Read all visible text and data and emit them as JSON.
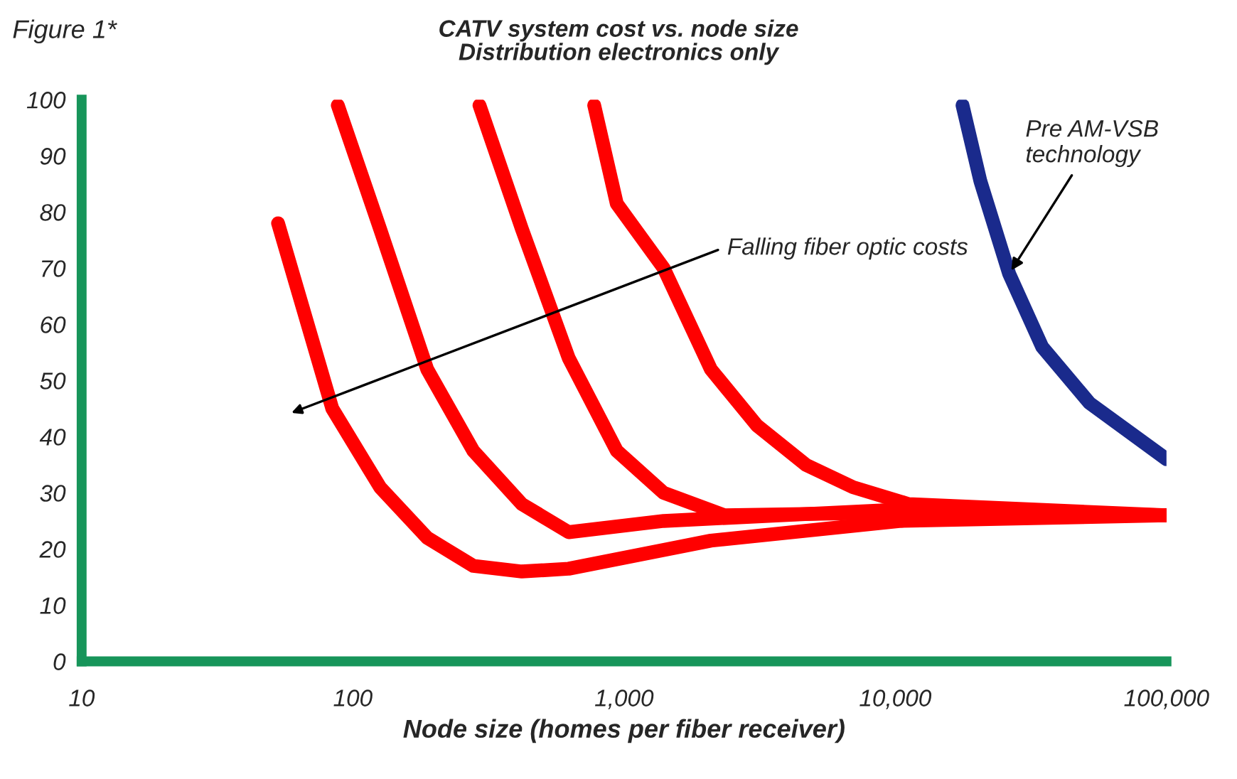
{
  "chart_data": {
    "type": "line",
    "title": "CATV system cost vs. node size",
    "subtitle": "Distribution electronics only",
    "xlabel": "Node size (homes per fiber receiver)",
    "log": "x",
    "xlim": [
      10,
      100000
    ],
    "xticks": [
      10,
      100,
      {
        "value": 1000,
        "label": "1,000"
      },
      {
        "value": 10000,
        "label": "10,000"
      },
      {
        "value": 100000,
        "label": "100,000"
      }
    ],
    "ylim": [
      0,
      100
    ],
    "yticks": [
      0,
      10,
      20,
      30,
      40,
      50,
      60,
      70,
      80,
      90,
      100
    ],
    "grid": false,
    "legend": false,
    "marker": "none",
    "line_style": "solid",
    "series": [
      {
        "color": "#ff0000",
        "x": [
          53,
          84,
          126,
          188,
          278,
          420,
          625,
          2090,
          10500,
          100000
        ],
        "values": [
          78,
          45,
          31,
          22,
          17,
          16,
          16.5,
          21.5,
          25,
          26
        ]
      },
      {
        "color": "#ff0000",
        "x": [
          88,
          126,
          188,
          278,
          420,
          625,
          1400,
          10000,
          100000
        ],
        "values": [
          99,
          77,
          52,
          37.5,
          28,
          23,
          25,
          27,
          26
        ]
      },
      {
        "color": "#ff0000",
        "x": [
          293,
          420,
          625,
          940,
          1400,
          2350,
          10000,
          100000
        ],
        "values": [
          99,
          77,
          54,
          37.5,
          30,
          26,
          26.5,
          26
        ]
      },
      {
        "color": "#ff0000",
        "x": [
          776,
          940,
          1400,
          2090,
          3090,
          4680,
          6990,
          11200,
          100000
        ],
        "values": [
          99,
          81.5,
          70,
          52,
          42,
          35,
          31,
          28,
          26
        ]
      },
      {
        "color": "#1a2a8c",
        "x": [
          17700,
          20600,
          26300,
          34800,
          52000,
          100000
        ],
        "values": [
          99,
          85.5,
          69,
          56,
          46,
          36
        ]
      }
    ],
    "annotations": [
      "Figure 1*",
      "Falling fiber optic costs",
      {
        "text": "Pre AM-VSB technology",
        "x": 26300,
        "y": 69
      }
    ]
  }
}
